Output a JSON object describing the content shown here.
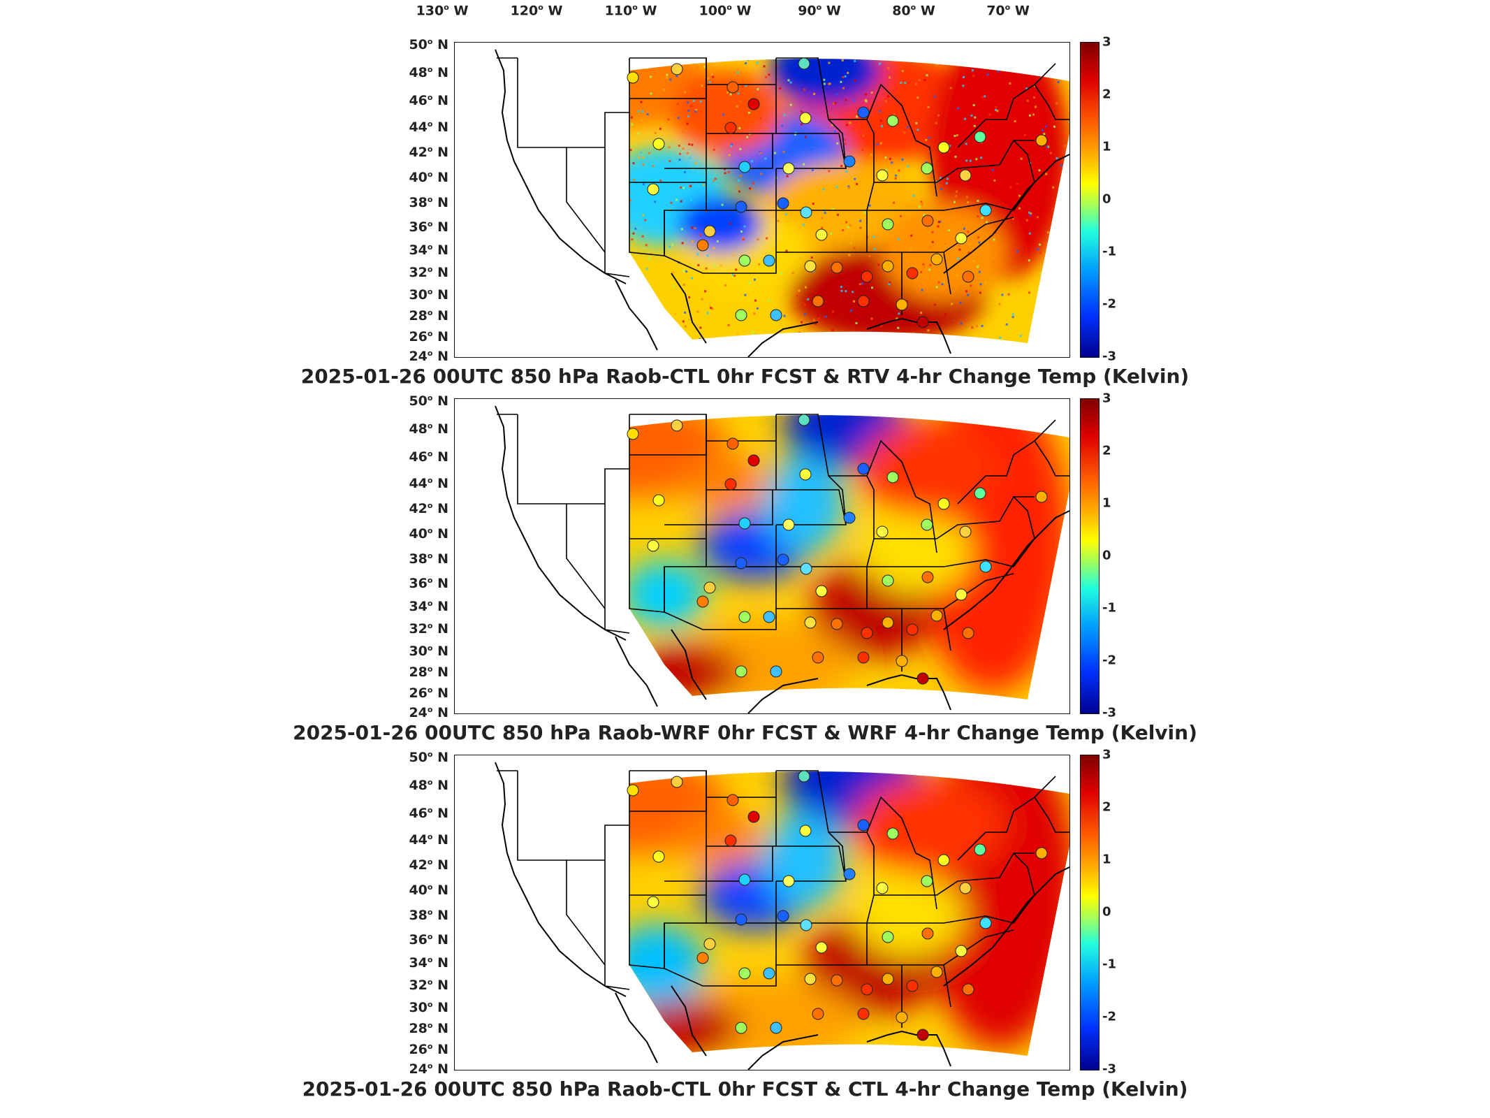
{
  "lon_labels": [
    "130",
    "120",
    "110",
    "100",
    "90",
    "80",
    "70"
  ],
  "lon_suffix": "W",
  "lat_labels": [
    "50",
    "48",
    "46",
    "44",
    "42",
    "40",
    "38",
    "36",
    "34",
    "32",
    "30",
    "28",
    "26",
    "24"
  ],
  "lat_suffix": "N",
  "colorbar": {
    "range": [
      -3,
      3
    ],
    "ticks": [
      "3",
      "2",
      "1",
      "0",
      "-1",
      "-2",
      "-3"
    ],
    "colors": [
      "#7f0000",
      "#e00000",
      "#ff5a00",
      "#ffb000",
      "#ffff00",
      "#9fff5f",
      "#22ffdd",
      "#00a0ff",
      "#0030ff",
      "#00008f"
    ]
  },
  "panels": [
    {
      "title": "2025-01-26 00UTC 850 hPa Raob-CTL 0hr FCST & RTV 4-hr Change Temp (Kelvin)"
    },
    {
      "title": "2025-01-26 00UTC 850 hPa Raob-WRF 0hr FCST & WRF 4-hr Change Temp (Kelvin)"
    },
    {
      "title": "2025-01-26 00UTC 850 hPa Raob-CTL 0hr FCST & CTL 4-hr Change Temp (Kelvin)"
    }
  ]
}
